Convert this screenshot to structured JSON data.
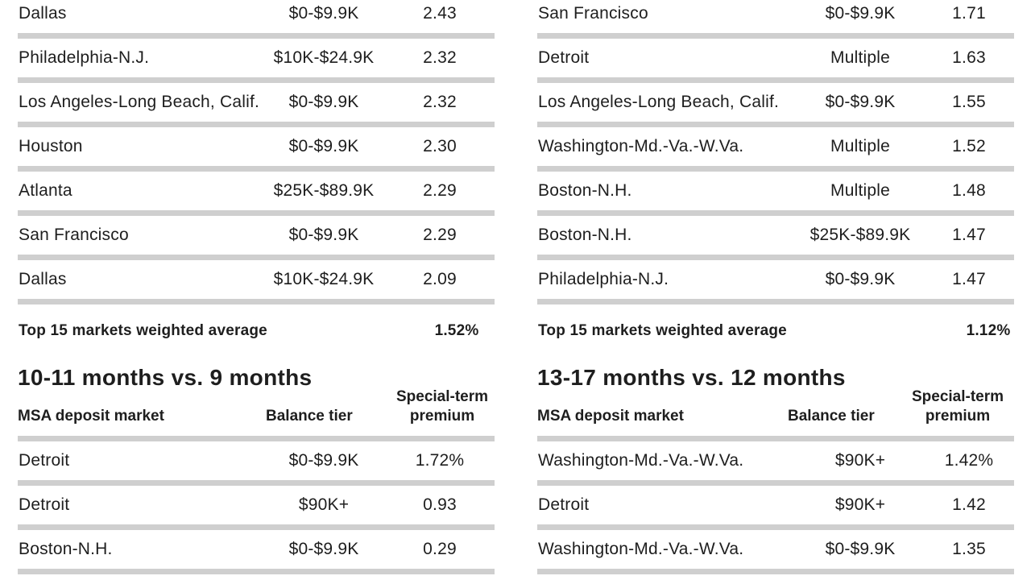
{
  "left": {
    "rows": [
      {
        "market": "Dallas",
        "tier": "$0-$9.9K",
        "value": "2.43"
      },
      {
        "market": "Philadelphia-N.J.",
        "tier": "$10K-$24.9K",
        "value": "2.32"
      },
      {
        "market": "Los Angeles-Long Beach, Calif.",
        "tier": "$0-$9.9K",
        "value": "2.32"
      },
      {
        "market": "Houston",
        "tier": "$0-$9.9K",
        "value": "2.30"
      },
      {
        "market": "Atlanta",
        "tier": "$25K-$89.9K",
        "value": "2.29"
      },
      {
        "market": "San Francisco",
        "tier": "$0-$9.9K",
        "value": "2.29"
      },
      {
        "market": "Dallas",
        "tier": "$10K-$24.9K",
        "value": "2.09"
      }
    ],
    "average_label": "Top 15 markets weighted average",
    "average_value": "1.52%",
    "section_title": "10-11 months vs. 9 months",
    "header_market": "MSA deposit market",
    "header_tier": "Balance tier",
    "header_premium_line1": "Special-term",
    "header_premium_line2": "premium",
    "section_rows": [
      {
        "market": "Detroit",
        "tier": "$0-$9.9K",
        "value": "1.72%"
      },
      {
        "market": "Detroit",
        "tier": "$90K+",
        "value": "0.93"
      },
      {
        "market": "Boston-N.H.",
        "tier": "$0-$9.9K",
        "value": "0.29"
      }
    ]
  },
  "right": {
    "rows": [
      {
        "market": "San Francisco",
        "tier": "$0-$9.9K",
        "value": "1.71"
      },
      {
        "market": "Detroit",
        "tier": "Multiple",
        "value": "1.63"
      },
      {
        "market": "Los Angeles-Long Beach, Calif.",
        "tier": "$0-$9.9K",
        "value": "1.55"
      },
      {
        "market": "Washington-Md.-Va.-W.Va.",
        "tier": "Multiple",
        "value": "1.52"
      },
      {
        "market": "Boston-N.H.",
        "tier": "Multiple",
        "value": "1.48"
      },
      {
        "market": "Boston-N.H.",
        "tier": "$25K-$89.9K",
        "value": "1.47"
      },
      {
        "market": "Philadelphia-N.J.",
        "tier": "$0-$9.9K",
        "value": "1.47"
      }
    ],
    "average_label": "Top 15 markets weighted average",
    "average_value": "1.12%",
    "section_title": "13-17 months vs. 12 months",
    "header_market": "MSA deposit market",
    "header_tier": "Balance tier",
    "header_premium_line1": "Special-term",
    "header_premium_line2": "premium",
    "section_rows": [
      {
        "market": "Washington-Md.-Va.-W.Va.",
        "tier": "$90K+",
        "value": "1.42%"
      },
      {
        "market": "Detroit",
        "tier": "$90K+",
        "value": "1.42"
      },
      {
        "market": "Washington-Md.-Va.-W.Va.",
        "tier": "$0-$9.9K",
        "value": "1.35"
      }
    ]
  },
  "colors": {
    "text": "#1e1e1e",
    "rule": "#cfcfcf",
    "background": "#ffffff"
  }
}
